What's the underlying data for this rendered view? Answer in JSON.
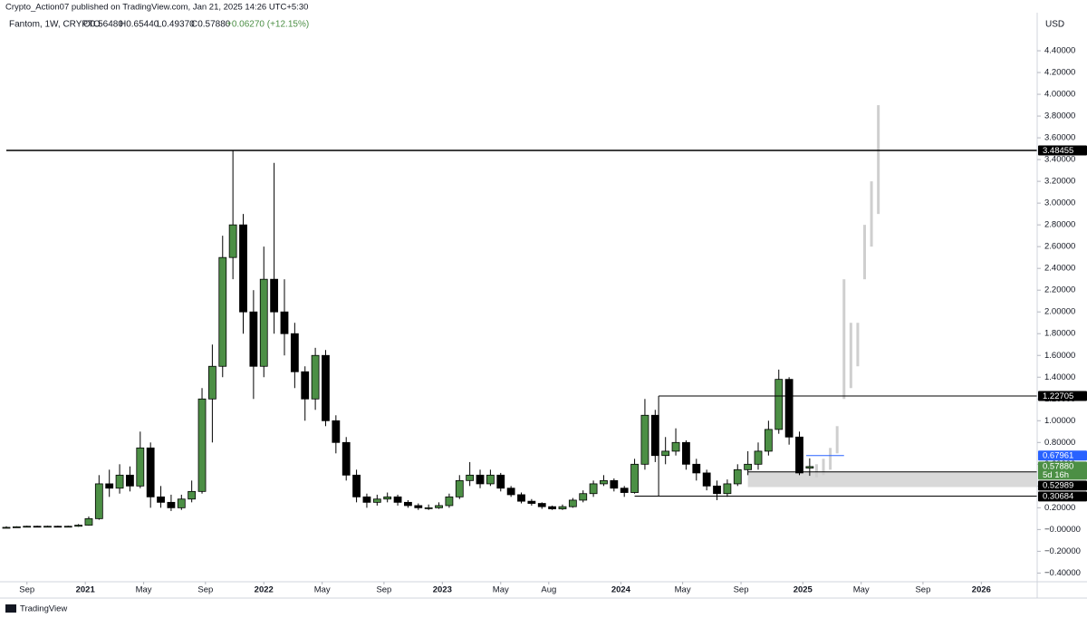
{
  "header": {
    "publisher": "Crypto_Action07 published on TradingView.com, Jan 21, 2025 14:26 UTC+5:30",
    "symbol": "Fantom, 1W, CRYPTO",
    "ohlc": [
      "O0.56480",
      "H0.65440",
      "L0.49370",
      "C0.57880",
      "+0.06270 (+12.15%)"
    ],
    "currency": "USD"
  },
  "footer": {
    "brand": "TradingView"
  },
  "chart_data": {
    "type": "candlestick",
    "bull_color": "#4c8f45",
    "bear_color": "#000000",
    "projection_color": "#cfcfcf",
    "xlim": [
      0,
      300
    ],
    "xticks": [
      {
        "value": 6,
        "label": "Sep"
      },
      {
        "value": 23,
        "label": "2021"
      },
      {
        "value": 40,
        "label": "May"
      },
      {
        "value": 58,
        "label": "Sep"
      },
      {
        "value": 75,
        "label": "2022"
      },
      {
        "value": 92,
        "label": "May"
      },
      {
        "value": 110,
        "label": "Sep"
      },
      {
        "value": 127,
        "label": "2023"
      },
      {
        "value": 144,
        "label": "May"
      },
      {
        "value": 158,
        "label": "Aug"
      },
      {
        "value": 179,
        "label": "2024"
      },
      {
        "value": 197,
        "label": "May"
      },
      {
        "value": 214,
        "label": "Sep"
      },
      {
        "value": 232,
        "label": "2025"
      },
      {
        "value": 249,
        "label": "May"
      },
      {
        "value": 267,
        "label": "Sep"
      },
      {
        "value": 284,
        "label": "2026"
      }
    ],
    "ylim": [
      -0.48,
      4.75
    ],
    "yticks": [
      {
        "value": -0.4,
        "label": "−0.40000"
      },
      {
        "value": -0.2,
        "label": "−0.20000"
      },
      {
        "value": 0,
        "label": "−0.00000"
      },
      {
        "value": 0.2,
        "label": "0.20000"
      },
      {
        "value": 0.4,
        "label": "0.40000"
      },
      {
        "value": 0.6,
        "label": "0.60000"
      },
      {
        "value": 0.8,
        "label": "0.80000"
      },
      {
        "value": 1.0,
        "label": "1.00000"
      },
      {
        "value": 1.2,
        "label": "1.20000"
      },
      {
        "value": 1.4,
        "label": "1.40000"
      },
      {
        "value": 1.6,
        "label": "1.60000"
      },
      {
        "value": 1.8,
        "label": "1.80000"
      },
      {
        "value": 2.0,
        "label": "2.00000"
      },
      {
        "value": 2.2,
        "label": "2.20000"
      },
      {
        "value": 2.4,
        "label": "2.40000"
      },
      {
        "value": 2.6,
        "label": "2.60000"
      },
      {
        "value": 2.8,
        "label": "2.80000"
      },
      {
        "value": 3.0,
        "label": "3.00000"
      },
      {
        "value": 3.2,
        "label": "3.20000"
      },
      {
        "value": 3.4,
        "label": "3.40000"
      },
      {
        "value": 3.6,
        "label": "3.60000"
      },
      {
        "value": 3.8,
        "label": "3.80000"
      },
      {
        "value": 4.0,
        "label": "4.00000"
      },
      {
        "value": 4.2,
        "label": "4.20000"
      },
      {
        "value": 4.4,
        "label": "4.40000"
      }
    ],
    "x": [
      0,
      3,
      6,
      9,
      12,
      15,
      18,
      21,
      24,
      27,
      30,
      33,
      36,
      39,
      42,
      45,
      48,
      51,
      54,
      57,
      60,
      63,
      66,
      69,
      72,
      75,
      78,
      81,
      84,
      87,
      90,
      93,
      96,
      99,
      102,
      105,
      108,
      111,
      114,
      117,
      120,
      123,
      126,
      129,
      132,
      135,
      138,
      141,
      144,
      147,
      150,
      153,
      156,
      159,
      162,
      165,
      168,
      171,
      174,
      177,
      180,
      183,
      186,
      189,
      192,
      195,
      198,
      201,
      204,
      207,
      210,
      213,
      216,
      219,
      222,
      225,
      228,
      231,
      234
    ],
    "ohlc": [
      [
        0.02,
        0.03,
        0.015,
        0.02
      ],
      [
        0.02,
        0.03,
        0.02,
        0.025
      ],
      [
        0.025,
        0.035,
        0.02,
        0.03
      ],
      [
        0.03,
        0.035,
        0.02,
        0.025
      ],
      [
        0.025,
        0.035,
        0.02,
        0.03
      ],
      [
        0.03,
        0.035,
        0.02,
        0.025
      ],
      [
        0.025,
        0.035,
        0.02,
        0.03
      ],
      [
        0.03,
        0.05,
        0.025,
        0.04
      ],
      [
        0.04,
        0.12,
        0.035,
        0.1
      ],
      [
        0.1,
        0.5,
        0.09,
        0.42
      ],
      [
        0.42,
        0.55,
        0.3,
        0.38
      ],
      [
        0.38,
        0.6,
        0.33,
        0.5
      ],
      [
        0.5,
        0.58,
        0.35,
        0.4
      ],
      [
        0.4,
        0.9,
        0.38,
        0.75
      ],
      [
        0.75,
        0.8,
        0.2,
        0.3
      ],
      [
        0.3,
        0.4,
        0.2,
        0.25
      ],
      [
        0.25,
        0.32,
        0.17,
        0.2
      ],
      [
        0.2,
        0.32,
        0.18,
        0.28
      ],
      [
        0.28,
        0.45,
        0.25,
        0.35
      ],
      [
        0.35,
        1.3,
        0.33,
        1.2
      ],
      [
        1.2,
        1.7,
        0.8,
        1.5
      ],
      [
        1.5,
        2.7,
        1.4,
        2.5
      ],
      [
        2.5,
        3.48,
        2.3,
        2.8
      ],
      [
        2.8,
        2.9,
        1.8,
        2.0
      ],
      [
        2.0,
        2.2,
        1.2,
        1.5
      ],
      [
        1.5,
        2.6,
        1.4,
        2.3
      ],
      [
        2.3,
        3.37,
        1.8,
        2.0
      ],
      [
        2.0,
        2.3,
        1.6,
        1.8
      ],
      [
        1.8,
        1.9,
        1.3,
        1.45
      ],
      [
        1.45,
        1.5,
        1.0,
        1.2
      ],
      [
        1.2,
        1.67,
        1.1,
        1.6
      ],
      [
        1.6,
        1.65,
        0.95,
        1.0
      ],
      [
        1.0,
        1.05,
        0.7,
        0.8
      ],
      [
        0.8,
        0.85,
        0.45,
        0.5
      ],
      [
        0.5,
        0.55,
        0.25,
        0.3
      ],
      [
        0.3,
        0.33,
        0.2,
        0.25
      ],
      [
        0.25,
        0.32,
        0.22,
        0.28
      ],
      [
        0.28,
        0.34,
        0.25,
        0.3
      ],
      [
        0.3,
        0.32,
        0.22,
        0.25
      ],
      [
        0.25,
        0.27,
        0.2,
        0.22
      ],
      [
        0.22,
        0.24,
        0.18,
        0.2
      ],
      [
        0.2,
        0.23,
        0.18,
        0.2
      ],
      [
        0.2,
        0.25,
        0.19,
        0.22
      ],
      [
        0.22,
        0.33,
        0.2,
        0.3
      ],
      [
        0.3,
        0.5,
        0.28,
        0.45
      ],
      [
        0.45,
        0.62,
        0.4,
        0.5
      ],
      [
        0.5,
        0.55,
        0.38,
        0.42
      ],
      [
        0.42,
        0.55,
        0.4,
        0.5
      ],
      [
        0.5,
        0.52,
        0.35,
        0.38
      ],
      [
        0.38,
        0.4,
        0.3,
        0.32
      ],
      [
        0.32,
        0.34,
        0.24,
        0.26
      ],
      [
        0.26,
        0.28,
        0.22,
        0.24
      ],
      [
        0.24,
        0.25,
        0.19,
        0.21
      ],
      [
        0.21,
        0.22,
        0.18,
        0.19
      ],
      [
        0.19,
        0.23,
        0.18,
        0.21
      ],
      [
        0.21,
        0.29,
        0.2,
        0.27
      ],
      [
        0.27,
        0.36,
        0.25,
        0.33
      ],
      [
        0.33,
        0.45,
        0.3,
        0.42
      ],
      [
        0.42,
        0.5,
        0.4,
        0.45
      ],
      [
        0.45,
        0.47,
        0.35,
        0.38
      ],
      [
        0.38,
        0.4,
        0.3,
        0.34
      ],
      [
        0.34,
        0.65,
        0.33,
        0.6
      ],
      [
        0.6,
        1.2,
        0.55,
        1.05
      ],
      [
        1.05,
        1.1,
        0.62,
        0.68
      ],
      [
        0.68,
        0.85,
        0.6,
        0.72
      ],
      [
        0.72,
        0.93,
        0.68,
        0.8
      ],
      [
        0.8,
        0.82,
        0.55,
        0.6
      ],
      [
        0.6,
        0.65,
        0.45,
        0.52
      ],
      [
        0.52,
        0.55,
        0.36,
        0.4
      ],
      [
        0.4,
        0.45,
        0.27,
        0.33
      ],
      [
        0.33,
        0.46,
        0.3,
        0.42
      ],
      [
        0.42,
        0.6,
        0.4,
        0.55
      ],
      [
        0.55,
        0.72,
        0.5,
        0.6
      ],
      [
        0.6,
        0.8,
        0.55,
        0.72
      ],
      [
        0.72,
        1.0,
        0.68,
        0.92
      ],
      [
        0.92,
        1.47,
        0.88,
        1.38
      ],
      [
        1.38,
        1.4,
        0.78,
        0.85
      ],
      [
        0.85,
        0.9,
        0.5,
        0.52
      ],
      [
        0.5648,
        0.6544,
        0.4937,
        0.5788
      ]
    ],
    "projection_x": [
      236,
      238,
      240,
      242,
      244,
      246,
      248,
      250,
      252,
      254
    ],
    "projection_ranges": [
      [
        0.48,
        0.6
      ],
      [
        0.5,
        0.65
      ],
      [
        0.55,
        0.75
      ],
      [
        0.7,
        0.95
      ],
      [
        1.2,
        2.3
      ],
      [
        1.3,
        1.9
      ],
      [
        1.5,
        1.9
      ],
      [
        2.3,
        2.8
      ],
      [
        2.6,
        3.2
      ],
      [
        2.9,
        3.9
      ]
    ],
    "levels": [
      {
        "value": 3.48455,
        "start": 0,
        "color": "#000000",
        "label_bg": "#000000"
      },
      {
        "value": 1.22705,
        "start": 190,
        "color": "#000000",
        "label_bg": "#000000"
      },
      {
        "value": 0.67961,
        "start": 233,
        "end": 244,
        "color": "#2962ff",
        "label_bg": "#2962ff"
      },
      {
        "value": {
          "value": 0.5788,
          "label": "0.57880"
        },
        "sublabel": "5d 16h",
        "color": "#4c8f45",
        "label_bg": "#4c8f45"
      },
      {
        "value": 0.52989,
        "start": 216,
        "color": "#000000",
        "label_bg": "#000000"
      },
      {
        "value": 0.30684,
        "start": 183,
        "color": "#000000",
        "label_bg": "#000000"
      }
    ],
    "zone": {
      "start": 216,
      "range": [
        0.39,
        0.52989
      ],
      "color": "#d9d9d9"
    }
  }
}
